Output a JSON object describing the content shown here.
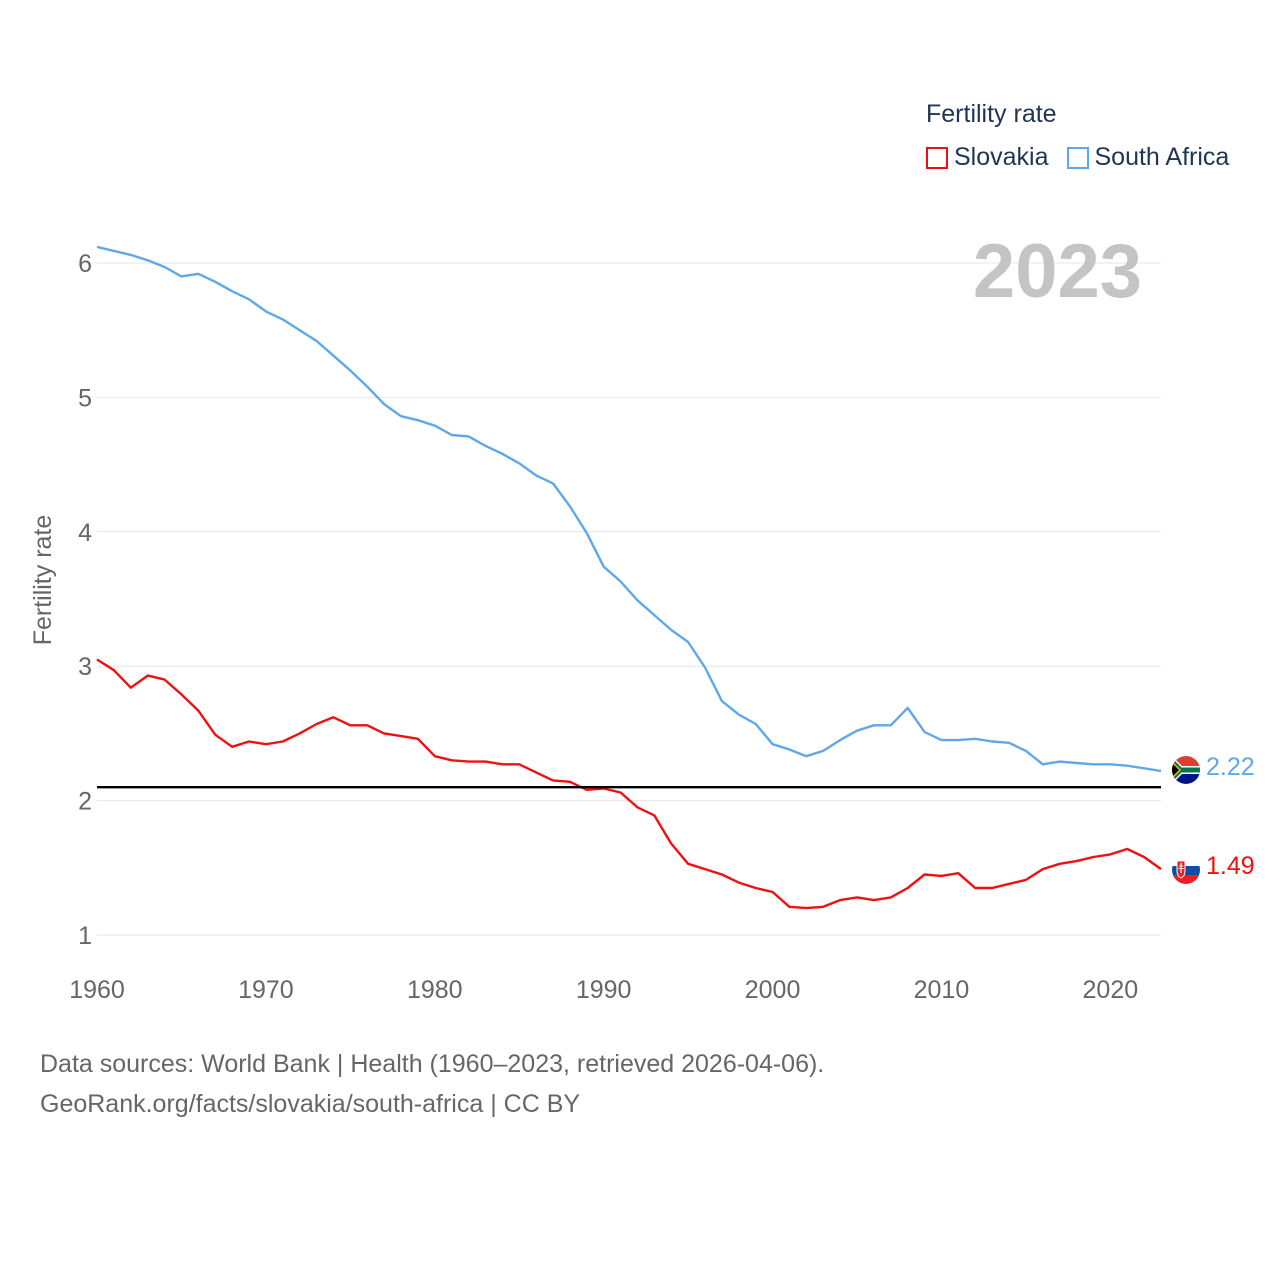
{
  "legend": {
    "title": "Fertility rate",
    "items": [
      {
        "label": "Slovakia",
        "color": "#ee1111"
      },
      {
        "label": "South Africa",
        "color": "#5fa8e8"
      }
    ]
  },
  "year_watermark": "2023",
  "end_labels": {
    "south_africa": {
      "value": "2.22",
      "icon": "south-africa-flag-icon"
    },
    "slovakia": {
      "value": "1.49",
      "icon": "slovakia-flag-icon"
    }
  },
  "source": {
    "line1": "Data sources: World Bank | Health (1960–2023, retrieved 2026-04-06).",
    "line2": "GeoRank.org/facts/slovakia/south-africa | CC BY"
  },
  "chart_data": {
    "type": "line",
    "title": "Fertility rate",
    "xlabel": "",
    "ylabel": "Fertility rate",
    "xlim": [
      1960,
      2023
    ],
    "ylim": [
      0.8,
      6.3
    ],
    "xticks": [
      1960,
      1970,
      1980,
      1990,
      2000,
      2010,
      2020
    ],
    "yticks": [
      1,
      2,
      3,
      4,
      5,
      6
    ],
    "grid": true,
    "legend_position": "top-right",
    "reference_line": {
      "y": 2.1,
      "color": "#000000"
    },
    "x": [
      1960,
      1961,
      1962,
      1963,
      1964,
      1965,
      1966,
      1967,
      1968,
      1969,
      1970,
      1971,
      1972,
      1973,
      1974,
      1975,
      1976,
      1977,
      1978,
      1979,
      1980,
      1981,
      1982,
      1983,
      1984,
      1985,
      1986,
      1987,
      1988,
      1989,
      1990,
      1991,
      1992,
      1993,
      1994,
      1995,
      1996,
      1997,
      1998,
      1999,
      2000,
      2001,
      2002,
      2003,
      2004,
      2005,
      2006,
      2007,
      2008,
      2009,
      2010,
      2011,
      2012,
      2013,
      2014,
      2015,
      2016,
      2017,
      2018,
      2019,
      2020,
      2021,
      2022,
      2023
    ],
    "series": [
      {
        "name": "Slovakia",
        "color": "#ee1111",
        "values": [
          3.05,
          2.97,
          2.84,
          2.93,
          2.9,
          2.79,
          2.67,
          2.49,
          2.4,
          2.44,
          2.42,
          2.44,
          2.5,
          2.57,
          2.62,
          2.56,
          2.56,
          2.5,
          2.48,
          2.46,
          2.33,
          2.3,
          2.29,
          2.29,
          2.27,
          2.27,
          2.21,
          2.15,
          2.14,
          2.08,
          2.09,
          2.06,
          1.95,
          1.89,
          1.68,
          1.53,
          1.49,
          1.45,
          1.39,
          1.35,
          1.32,
          1.21,
          1.2,
          1.21,
          1.26,
          1.28,
          1.26,
          1.28,
          1.35,
          1.45,
          1.44,
          1.46,
          1.35,
          1.35,
          1.38,
          1.41,
          1.49,
          1.53,
          1.55,
          1.58,
          1.6,
          1.64,
          1.58,
          1.49
        ]
      },
      {
        "name": "South Africa",
        "color": "#5fa8e8",
        "values": [
          6.12,
          6.09,
          6.06,
          6.02,
          5.97,
          5.9,
          5.92,
          5.86,
          5.79,
          5.73,
          5.64,
          5.58,
          5.5,
          5.42,
          5.31,
          5.2,
          5.08,
          4.95,
          4.86,
          4.83,
          4.79,
          4.72,
          4.71,
          4.64,
          4.58,
          4.51,
          4.42,
          4.36,
          4.19,
          3.99,
          3.74,
          3.63,
          3.49,
          3.38,
          3.27,
          3.18,
          2.99,
          2.74,
          2.64,
          2.57,
          2.42,
          2.38,
          2.33,
          2.37,
          2.45,
          2.52,
          2.56,
          2.56,
          2.69,
          2.51,
          2.45,
          2.45,
          2.46,
          2.44,
          2.43,
          2.37,
          2.27,
          2.29,
          2.28,
          2.27,
          2.27,
          2.26,
          2.24,
          2.22
        ]
      }
    ]
  }
}
